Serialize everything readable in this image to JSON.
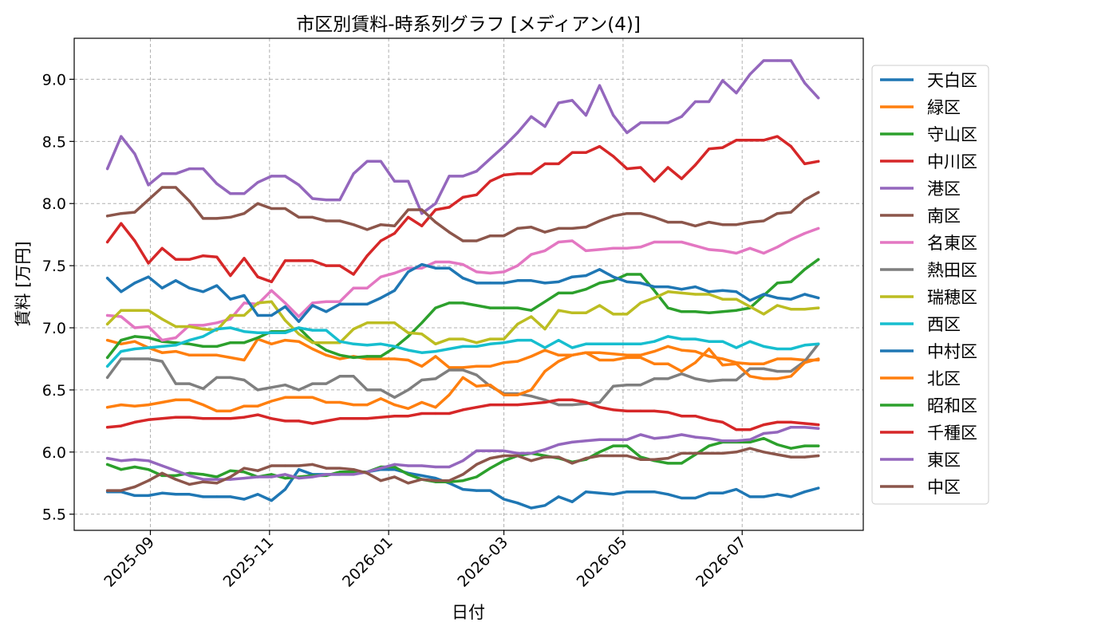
{
  "chart_data": {
    "type": "line",
    "title": "市区別賃料-時系列グラフ [メディアン(4)]",
    "xlabel": "日付",
    "ylabel": "賃料 [万円]",
    "x_ticks": [
      "2025-09",
      "2025-11",
      "2026-01",
      "2026-03",
      "2026-05",
      "2026-07"
    ],
    "x_tick_dates": [
      "2025-09-01",
      "2025-11-01",
      "2026-01-01",
      "2026-03-01",
      "2026-05-01",
      "2026-07-01"
    ],
    "xlim": [
      "2025-07-24",
      "2026-09-01"
    ],
    "y_ticks": [
      5.5,
      6.0,
      6.5,
      7.0,
      7.5,
      8.0,
      8.5,
      9.0
    ],
    "y_tick_labels": [
      "5.5",
      "6.0",
      "6.5",
      "7.0",
      "7.5",
      "8.0",
      "8.5",
      "9.0"
    ],
    "ylim": [
      5.37,
      9.33
    ],
    "grid": true,
    "legend_position": "right",
    "x": [
      "2025-08-10",
      "2025-08-17",
      "2025-08-24",
      "2025-08-31",
      "2025-09-07",
      "2025-09-14",
      "2025-09-21",
      "2025-09-28",
      "2025-10-05",
      "2025-10-12",
      "2025-10-19",
      "2025-10-26",
      "2025-11-02",
      "2025-11-09",
      "2025-11-16",
      "2025-11-23",
      "2025-11-30",
      "2025-12-07",
      "2025-12-14",
      "2025-12-21",
      "2025-12-28",
      "2026-01-04",
      "2026-01-11",
      "2026-01-18",
      "2026-01-25",
      "2026-02-01",
      "2026-02-08",
      "2026-02-15",
      "2026-02-22",
      "2026-03-01",
      "2026-03-08",
      "2026-03-15",
      "2026-03-22",
      "2026-03-29",
      "2026-04-05",
      "2026-04-12",
      "2026-04-19",
      "2026-04-26",
      "2026-05-03",
      "2026-05-10",
      "2026-05-17",
      "2026-05-24",
      "2026-05-31",
      "2026-06-07",
      "2026-06-14",
      "2026-06-21",
      "2026-06-28",
      "2026-07-05",
      "2026-07-12",
      "2026-07-19",
      "2026-07-26",
      "2026-08-02",
      "2026-08-09"
    ],
    "series": [
      {
        "name": "天白区",
        "color": "#1f77b4",
        "values": [
          5.68,
          5.68,
          5.65,
          5.65,
          5.67,
          5.66,
          5.66,
          5.64,
          5.64,
          5.64,
          5.62,
          5.66,
          5.61,
          5.7,
          5.86,
          5.82,
          5.82,
          5.82,
          5.83,
          5.84,
          5.86,
          5.86,
          5.83,
          5.81,
          5.79,
          5.75,
          5.7,
          5.69,
          5.69,
          5.62,
          5.59,
          5.55,
          5.57,
          5.64,
          5.6,
          5.68,
          5.67,
          5.66,
          5.68,
          5.68,
          5.68,
          5.66,
          5.63,
          5.63,
          5.67,
          5.67,
          5.7,
          5.64,
          5.64,
          5.66,
          5.64,
          5.68,
          5.71
        ]
      },
      {
        "name": "緑区",
        "color": "#ff7f0e",
        "values": [
          6.9,
          6.87,
          6.89,
          6.84,
          6.8,
          6.81,
          6.78,
          6.78,
          6.78,
          6.76,
          6.74,
          6.91,
          6.87,
          6.9,
          6.89,
          6.83,
          6.78,
          6.75,
          6.77,
          6.75,
          6.75,
          6.75,
          6.74,
          6.69,
          6.77,
          6.68,
          6.68,
          6.69,
          6.69,
          6.72,
          6.73,
          6.77,
          6.82,
          6.78,
          6.78,
          6.8,
          6.8,
          6.79,
          6.78,
          6.78,
          6.81,
          6.85,
          6.82,
          6.81,
          6.77,
          6.75,
          6.72,
          6.71,
          6.71,
          6.75,
          6.75,
          6.74,
          6.74
        ]
      },
      {
        "name": "守山区",
        "color": "#2ca02c",
        "values": [
          6.76,
          6.9,
          6.93,
          6.92,
          6.89,
          6.88,
          6.87,
          6.85,
          6.85,
          6.88,
          6.88,
          6.92,
          6.97,
          6.97,
          7.0,
          6.89,
          6.82,
          6.78,
          6.76,
          6.77,
          6.77,
          6.84,
          6.93,
          7.04,
          7.16,
          7.2,
          7.2,
          7.18,
          7.16,
          7.16,
          7.16,
          7.14,
          7.21,
          7.28,
          7.28,
          7.31,
          7.36,
          7.38,
          7.43,
          7.43,
          7.3,
          7.16,
          7.13,
          7.13,
          7.12,
          7.13,
          7.14,
          7.16,
          7.26,
          7.36,
          7.37,
          7.47,
          7.55
        ]
      },
      {
        "name": "中川区",
        "color": "#d62728",
        "values": [
          7.69,
          7.84,
          7.7,
          7.52,
          7.64,
          7.55,
          7.55,
          7.58,
          7.57,
          7.42,
          7.56,
          7.41,
          7.37,
          7.54,
          7.54,
          7.54,
          7.5,
          7.5,
          7.43,
          7.58,
          7.7,
          7.76,
          7.89,
          7.82,
          7.95,
          7.97,
          8.05,
          8.07,
          8.18,
          8.23,
          8.24,
          8.24,
          8.32,
          8.32,
          8.41,
          8.41,
          8.46,
          8.38,
          8.28,
          8.29,
          8.18,
          8.29,
          8.2,
          8.31,
          8.44,
          8.45,
          8.51,
          8.51,
          8.51,
          8.54,
          8.46,
          8.32,
          8.34
        ]
      },
      {
        "name": "港区",
        "color": "#9467bd",
        "values": [
          8.28,
          8.54,
          8.4,
          8.15,
          8.24,
          8.24,
          8.28,
          8.28,
          8.16,
          8.08,
          8.08,
          8.17,
          8.22,
          8.22,
          8.15,
          8.04,
          8.03,
          8.03,
          8.24,
          8.34,
          8.34,
          8.18,
          8.18,
          7.92,
          8.0,
          8.22,
          8.22,
          8.26,
          8.36,
          8.46,
          8.57,
          8.7,
          8.62,
          8.81,
          8.83,
          8.71,
          8.95,
          8.71,
          8.57,
          8.65,
          8.65,
          8.65,
          8.7,
          8.82,
          8.82,
          8.99,
          8.89,
          9.04,
          9.15,
          9.15,
          9.15,
          8.97,
          8.85
        ]
      },
      {
        "name": "南区",
        "color": "#8c564b",
        "values": [
          7.9,
          7.92,
          7.93,
          8.03,
          8.13,
          8.13,
          8.02,
          7.88,
          7.88,
          7.89,
          7.92,
          8.0,
          7.96,
          7.96,
          7.89,
          7.89,
          7.86,
          7.86,
          7.83,
          7.79,
          7.83,
          7.82,
          7.95,
          7.95,
          7.85,
          7.77,
          7.7,
          7.7,
          7.74,
          7.74,
          7.8,
          7.81,
          7.77,
          7.8,
          7.8,
          7.81,
          7.86,
          7.9,
          7.92,
          7.92,
          7.89,
          7.85,
          7.85,
          7.82,
          7.85,
          7.83,
          7.83,
          7.85,
          7.86,
          7.92,
          7.93,
          8.03,
          8.09
        ]
      },
      {
        "name": "名東区",
        "color": "#e377c2",
        "values": [
          7.1,
          7.09,
          7.0,
          7.01,
          6.9,
          6.92,
          7.02,
          7.02,
          7.04,
          7.07,
          7.2,
          7.19,
          7.3,
          7.2,
          7.09,
          7.2,
          7.21,
          7.21,
          7.32,
          7.32,
          7.41,
          7.44,
          7.48,
          7.48,
          7.53,
          7.53,
          7.51,
          7.45,
          7.44,
          7.45,
          7.5,
          7.59,
          7.62,
          7.69,
          7.7,
          7.62,
          7.63,
          7.64,
          7.64,
          7.65,
          7.69,
          7.69,
          7.69,
          7.66,
          7.63,
          7.62,
          7.6,
          7.64,
          7.6,
          7.65,
          7.71,
          7.76,
          7.8
        ]
      },
      {
        "name": "熱田区",
        "color": "#7f7f7f",
        "values": [
          6.6,
          6.75,
          6.75,
          6.75,
          6.73,
          6.55,
          6.55,
          6.51,
          6.6,
          6.6,
          6.58,
          6.5,
          6.52,
          6.54,
          6.5,
          6.55,
          6.55,
          6.61,
          6.61,
          6.5,
          6.5,
          6.44,
          6.5,
          6.58,
          6.59,
          6.66,
          6.66,
          6.62,
          6.53,
          6.47,
          6.47,
          6.45,
          6.42,
          6.38,
          6.38,
          6.39,
          6.4,
          6.53,
          6.54,
          6.54,
          6.59,
          6.59,
          6.63,
          6.59,
          6.57,
          6.58,
          6.58,
          6.67,
          6.67,
          6.65,
          6.65,
          6.73,
          6.87
        ]
      },
      {
        "name": "瑞穂区",
        "color": "#bcbd22",
        "values": [
          7.03,
          7.14,
          7.14,
          7.14,
          7.07,
          7.01,
          7.01,
          6.99,
          6.98,
          7.1,
          7.1,
          7.2,
          7.21,
          7.06,
          6.95,
          6.88,
          6.88,
          6.88,
          6.99,
          7.04,
          7.04,
          7.04,
          6.96,
          6.95,
          6.87,
          6.91,
          6.91,
          6.88,
          6.91,
          6.91,
          7.03,
          7.09,
          6.99,
          7.14,
          7.12,
          7.12,
          7.18,
          7.11,
          7.11,
          7.2,
          7.24,
          7.29,
          7.28,
          7.27,
          7.27,
          7.23,
          7.23,
          7.17,
          7.11,
          7.18,
          7.15,
          7.15,
          7.16
        ]
      },
      {
        "name": "西区",
        "color": "#17becf",
        "values": [
          6.69,
          6.81,
          6.83,
          6.84,
          6.85,
          6.86,
          6.9,
          6.93,
          6.99,
          7.0,
          6.97,
          6.96,
          6.96,
          6.96,
          7.0,
          6.98,
          6.98,
          6.89,
          6.87,
          6.86,
          6.87,
          6.85,
          6.82,
          6.8,
          6.81,
          6.83,
          6.85,
          6.85,
          6.87,
          6.88,
          6.9,
          6.9,
          6.84,
          6.9,
          6.84,
          6.87,
          6.87,
          6.87,
          6.87,
          6.87,
          6.89,
          6.93,
          6.91,
          6.91,
          6.89,
          6.89,
          6.84,
          6.89,
          6.85,
          6.83,
          6.83,
          6.86,
          6.87
        ]
      },
      {
        "name": "中村区",
        "color": "#1f77b4",
        "values": [
          7.4,
          7.29,
          7.36,
          7.41,
          7.32,
          7.38,
          7.32,
          7.29,
          7.34,
          7.23,
          7.26,
          7.1,
          7.1,
          7.17,
          7.05,
          7.18,
          7.13,
          7.19,
          7.19,
          7.19,
          7.24,
          7.3,
          7.45,
          7.51,
          7.48,
          7.48,
          7.4,
          7.36,
          7.36,
          7.36,
          7.38,
          7.38,
          7.36,
          7.37,
          7.41,
          7.42,
          7.47,
          7.41,
          7.37,
          7.36,
          7.33,
          7.33,
          7.31,
          7.33,
          7.29,
          7.3,
          7.29,
          7.22,
          7.27,
          7.24,
          7.23,
          7.27,
          7.24
        ]
      },
      {
        "name": "北区",
        "color": "#ff7f0e",
        "values": [
          6.36,
          6.38,
          6.37,
          6.38,
          6.4,
          6.42,
          6.42,
          6.38,
          6.33,
          6.33,
          6.37,
          6.37,
          6.41,
          6.44,
          6.44,
          6.44,
          6.4,
          6.4,
          6.38,
          6.38,
          6.43,
          6.38,
          6.35,
          6.4,
          6.36,
          6.46,
          6.6,
          6.53,
          6.54,
          6.46,
          6.46,
          6.5,
          6.65,
          6.73,
          6.78,
          6.8,
          6.74,
          6.74,
          6.76,
          6.76,
          6.71,
          6.71,
          6.65,
          6.72,
          6.83,
          6.7,
          6.71,
          6.61,
          6.59,
          6.59,
          6.61,
          6.72,
          6.75
        ]
      },
      {
        "name": "昭和区",
        "color": "#2ca02c",
        "values": [
          5.9,
          5.86,
          5.88,
          5.86,
          5.81,
          5.81,
          5.83,
          5.82,
          5.8,
          5.85,
          5.84,
          5.8,
          5.82,
          5.79,
          5.8,
          5.81,
          5.81,
          5.84,
          5.84,
          5.84,
          5.88,
          5.88,
          5.82,
          5.78,
          5.76,
          5.76,
          5.77,
          5.8,
          5.87,
          5.93,
          5.97,
          5.99,
          5.97,
          5.95,
          5.92,
          5.94,
          6.0,
          6.05,
          6.05,
          5.96,
          5.93,
          5.91,
          5.91,
          5.98,
          6.05,
          6.08,
          6.08,
          6.08,
          6.11,
          6.06,
          6.03,
          6.05,
          6.05
        ]
      },
      {
        "name": "千種区",
        "color": "#d62728",
        "values": [
          6.2,
          6.21,
          6.24,
          6.26,
          6.27,
          6.28,
          6.28,
          6.27,
          6.27,
          6.27,
          6.28,
          6.3,
          6.27,
          6.25,
          6.25,
          6.23,
          6.25,
          6.27,
          6.27,
          6.27,
          6.28,
          6.29,
          6.29,
          6.31,
          6.31,
          6.31,
          6.34,
          6.36,
          6.38,
          6.38,
          6.38,
          6.39,
          6.4,
          6.42,
          6.42,
          6.4,
          6.36,
          6.34,
          6.33,
          6.33,
          6.33,
          6.32,
          6.29,
          6.29,
          6.26,
          6.24,
          6.18,
          6.18,
          6.22,
          6.24,
          6.24,
          6.23,
          6.22
        ]
      },
      {
        "name": "東区",
        "color": "#9467bd",
        "values": [
          5.95,
          5.93,
          5.94,
          5.93,
          5.89,
          5.85,
          5.81,
          5.78,
          5.78,
          5.78,
          5.79,
          5.8,
          5.8,
          5.82,
          5.79,
          5.8,
          5.82,
          5.82,
          5.82,
          5.84,
          5.87,
          5.9,
          5.89,
          5.89,
          5.88,
          5.88,
          5.93,
          6.01,
          6.01,
          6.01,
          5.99,
          5.99,
          6.02,
          6.06,
          6.08,
          6.09,
          6.1,
          6.1,
          6.1,
          6.14,
          6.11,
          6.12,
          6.14,
          6.12,
          6.11,
          6.09,
          6.09,
          6.1,
          6.15,
          6.16,
          6.2,
          6.2,
          6.19
        ]
      },
      {
        "name": "中区",
        "color": "#8c564b",
        "values": [
          5.69,
          5.69,
          5.72,
          5.77,
          5.83,
          5.78,
          5.74,
          5.76,
          5.75,
          5.8,
          5.87,
          5.85,
          5.89,
          5.89,
          5.89,
          5.9,
          5.87,
          5.87,
          5.86,
          5.83,
          5.77,
          5.8,
          5.75,
          5.78,
          5.77,
          5.77,
          5.82,
          5.9,
          5.95,
          5.97,
          5.97,
          5.93,
          5.96,
          5.96,
          5.91,
          5.95,
          5.97,
          5.97,
          5.97,
          5.94,
          5.94,
          5.95,
          5.99,
          5.99,
          5.99,
          5.99,
          6.0,
          6.03,
          6.0,
          5.98,
          5.96,
          5.96,
          5.97
        ]
      }
    ]
  }
}
